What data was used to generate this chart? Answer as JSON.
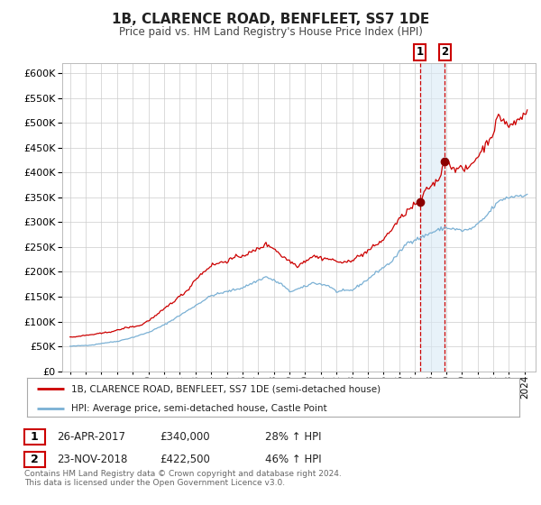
{
  "title": "1B, CLARENCE ROAD, BENFLEET, SS7 1DE",
  "subtitle": "Price paid vs. HM Land Registry's House Price Index (HPI)",
  "legend_line1": "1B, CLARENCE ROAD, BENFLEET, SS7 1DE (semi-detached house)",
  "legend_line2": "HPI: Average price, semi-detached house, Castle Point",
  "transaction1_date": "26-APR-2017",
  "transaction1_price": "£340,000",
  "transaction1_hpi": "28% ↑ HPI",
  "transaction1_year": 2017.32,
  "transaction1_value": 340000,
  "transaction2_date": "23-NOV-2018",
  "transaction2_price": "£422,500",
  "transaction2_hpi": "46% ↑ HPI",
  "transaction2_year": 2018.9,
  "transaction2_value": 422500,
  "red_line_color": "#cc0000",
  "blue_line_color": "#7ab0d4",
  "marker_color": "#8b0000",
  "vline_color": "#cc0000",
  "shade_color": "#daeaf5",
  "background_color": "#ffffff",
  "grid_color": "#cccccc",
  "ylim": [
    0,
    620000
  ],
  "yticks": [
    0,
    50000,
    100000,
    150000,
    200000,
    250000,
    300000,
    350000,
    400000,
    450000,
    500000,
    550000,
    600000
  ],
  "footnote1": "Contains HM Land Registry data © Crown copyright and database right 2024.",
  "footnote2": "This data is licensed under the Open Government Licence v3.0.",
  "start_year": 1995,
  "end_year": 2024,
  "xlim_left": 1994.5,
  "xlim_right": 2024.7
}
